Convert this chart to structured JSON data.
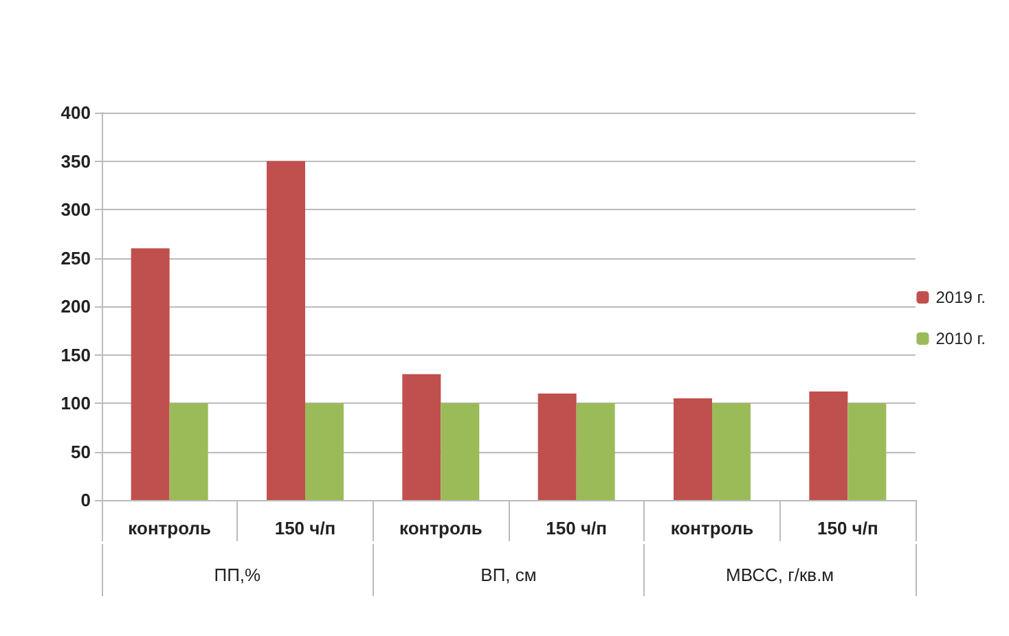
{
  "chart_data": {
    "type": "bar",
    "categories": [
      "контроль",
      "150 ч/п",
      "контроль",
      "150 ч/п",
      "контроль",
      "150 ч/п"
    ],
    "annotations": [
      "ПП,%",
      "ВП, см",
      "МВСС, г/кв.м"
    ],
    "series": [
      {
        "name": "2019 г.",
        "color": "#c0504d",
        "values": [
          260,
          350,
          130,
          110,
          105,
          112
        ]
      },
      {
        "name": "2010 г.",
        "color": "#9bbb59",
        "values": [
          100,
          100,
          100,
          100,
          100,
          100
        ]
      }
    ],
    "ylim": [
      0,
      400
    ],
    "yticks": [
      0,
      50,
      100,
      150,
      200,
      250,
      300,
      350,
      400
    ],
    "grid": "y",
    "legend": "right"
  }
}
